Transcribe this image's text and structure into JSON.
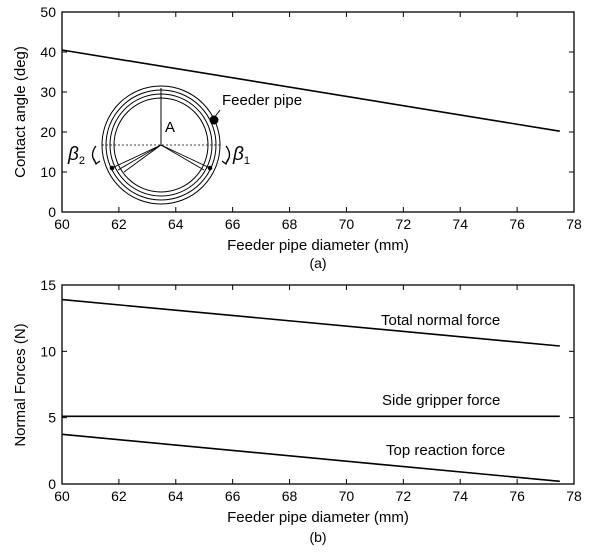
{
  "chart_data": [
    {
      "id": "a",
      "type": "line",
      "caption": "(a)",
      "xlabel": "Feeder pipe diameter (mm)",
      "ylabel": "Contact angle (deg)",
      "xlim": [
        60,
        78
      ],
      "ylim": [
        0,
        50
      ],
      "xticks": [
        60,
        62,
        64,
        66,
        68,
        70,
        72,
        74,
        76,
        78
      ],
      "yticks": [
        0,
        10,
        20,
        30,
        40,
        50
      ],
      "grid": false,
      "series": [
        {
          "x": [
            60,
            77.5
          ],
          "y": [
            40.5,
            20.2
          ]
        }
      ],
      "inset": {
        "label_center": "A",
        "label_pipe": "Feeder pipe",
        "label_beta1": "β",
        "label_beta1_sub": "1",
        "label_beta2": "β",
        "label_beta2_sub": "2"
      }
    },
    {
      "id": "b",
      "type": "line",
      "caption": "(b)",
      "xlabel": "Feeder pipe diameter (mm)",
      "ylabel": "Normal Forces (N)",
      "xlim": [
        60,
        78
      ],
      "ylim": [
        0,
        15
      ],
      "xticks": [
        60,
        62,
        64,
        66,
        68,
        70,
        72,
        74,
        76,
        78
      ],
      "yticks": [
        0,
        5,
        10,
        15
      ],
      "grid": false,
      "series": [
        {
          "name": "Total normal force",
          "x": [
            60,
            77.5
          ],
          "y": [
            13.9,
            10.4
          ]
        },
        {
          "name": "Side gripper force",
          "x": [
            60,
            77.5
          ],
          "y": [
            5.1,
            5.1
          ]
        },
        {
          "name": "Top reaction force",
          "x": [
            60,
            77.5
          ],
          "y": [
            3.75,
            0.2
          ]
        }
      ]
    }
  ]
}
